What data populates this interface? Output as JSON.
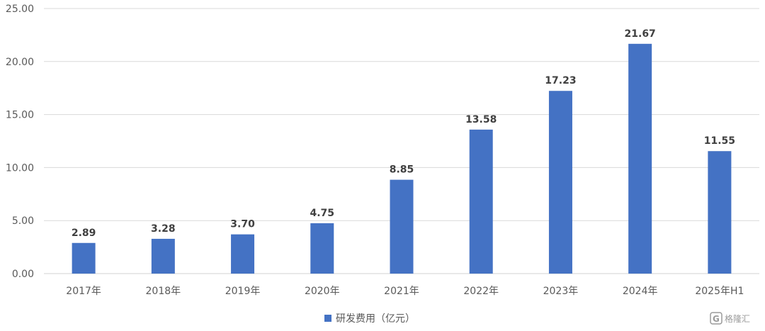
{
  "chart_data": {
    "type": "bar",
    "categories": [
      "2017年",
      "2018年",
      "2019年",
      "2020年",
      "2021年",
      "2022年",
      "2023年",
      "2024年",
      "2025年H1"
    ],
    "series": [
      {
        "name": "研发费用（亿元）",
        "values": [
          2.89,
          3.28,
          3.7,
          4.75,
          8.85,
          13.58,
          17.23,
          21.67,
          11.55
        ]
      }
    ],
    "data_labels": [
      "2.89",
      "3.28",
      "3.70",
      "4.75",
      "8.85",
      "13.58",
      "17.23",
      "21.67",
      "11.55"
    ],
    "ylim": [
      0,
      25
    ],
    "yticks": [
      "0.00",
      "5.00",
      "10.00",
      "15.00",
      "20.00",
      "25.00"
    ],
    "grid": true,
    "legend_position": "bottom-center",
    "bar_color": "#4472C4",
    "grid_color": "#D9D9D9"
  },
  "watermark": {
    "text": "格隆汇",
    "icon": "g-logo-icon"
  }
}
